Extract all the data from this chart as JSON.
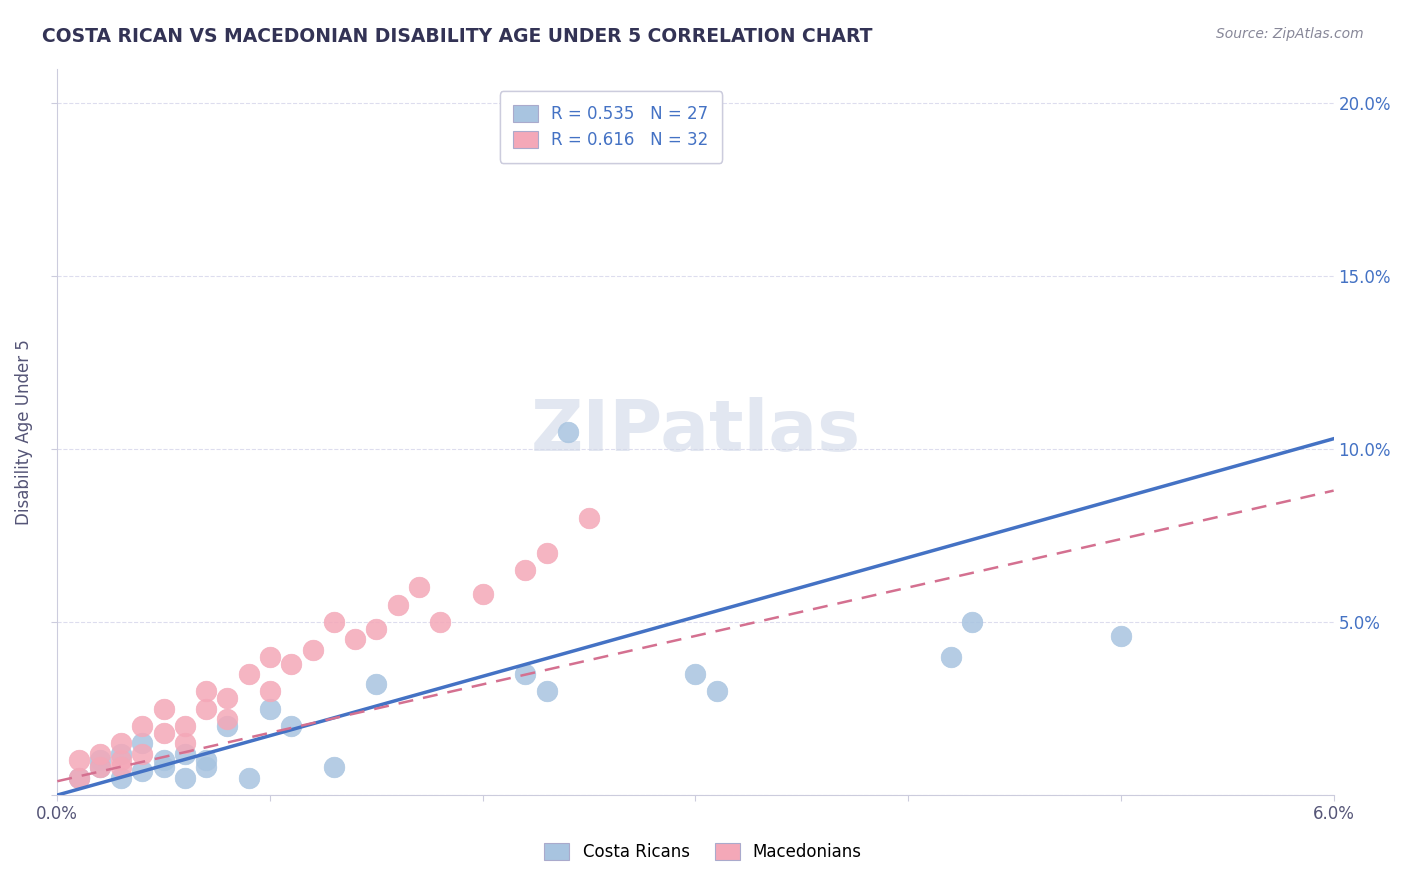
{
  "title": "COSTA RICAN VS MACEDONIAN DISABILITY AGE UNDER 5 CORRELATION CHART",
  "source": "Source: ZipAtlas.com",
  "ylabel": "Disability Age Under 5",
  "xlim": [
    0.0,
    0.06
  ],
  "ylim": [
    0.0,
    0.21
  ],
  "yticks_right": [
    0.0,
    0.05,
    0.1,
    0.15,
    0.2
  ],
  "ytick_labels_right": [
    "",
    "5.0%",
    "10.0%",
    "15.0%",
    "20.0%"
  ],
  "blue_R": "0.535",
  "blue_N": "27",
  "pink_R": "0.616",
  "pink_N": "32",
  "blue_color": "#a8c4e0",
  "pink_color": "#f4a8b8",
  "blue_line_color": "#4472c4",
  "pink_line_color": "#d47090",
  "legend_label_blue": "Costa Ricans",
  "legend_label_pink": "Macedonians",
  "watermark": "ZIPatlas",
  "blue_scatter_x": [
    0.001,
    0.002,
    0.002,
    0.003,
    0.003,
    0.004,
    0.004,
    0.005,
    0.005,
    0.006,
    0.006,
    0.007,
    0.007,
    0.008,
    0.009,
    0.01,
    0.011,
    0.013,
    0.015,
    0.022,
    0.023,
    0.024,
    0.03,
    0.031,
    0.042,
    0.043,
    0.05
  ],
  "blue_scatter_y": [
    0.005,
    0.008,
    0.01,
    0.012,
    0.005,
    0.015,
    0.007,
    0.01,
    0.008,
    0.012,
    0.005,
    0.008,
    0.01,
    0.02,
    0.005,
    0.025,
    0.02,
    0.008,
    0.032,
    0.035,
    0.03,
    0.105,
    0.035,
    0.03,
    0.04,
    0.05,
    0.046
  ],
  "pink_scatter_x": [
    0.001,
    0.001,
    0.002,
    0.002,
    0.003,
    0.003,
    0.003,
    0.004,
    0.004,
    0.005,
    0.005,
    0.006,
    0.006,
    0.007,
    0.007,
    0.008,
    0.008,
    0.009,
    0.01,
    0.01,
    0.011,
    0.012,
    0.013,
    0.014,
    0.015,
    0.016,
    0.017,
    0.018,
    0.02,
    0.022,
    0.023,
    0.025
  ],
  "pink_scatter_y": [
    0.005,
    0.01,
    0.008,
    0.012,
    0.01,
    0.015,
    0.008,
    0.02,
    0.012,
    0.018,
    0.025,
    0.015,
    0.02,
    0.025,
    0.03,
    0.022,
    0.028,
    0.035,
    0.04,
    0.03,
    0.038,
    0.042,
    0.05,
    0.045,
    0.048,
    0.055,
    0.06,
    0.05,
    0.058,
    0.065,
    0.07,
    0.08
  ],
  "blue_line_x": [
    0.0,
    0.06
  ],
  "blue_line_y": [
    0.0,
    0.103
  ],
  "pink_line_x": [
    0.0,
    0.06
  ],
  "pink_line_y": [
    0.004,
    0.088
  ],
  "background_color": "#ffffff",
  "grid_color": "#ddddee",
  "title_color": "#333355",
  "axis_label_color": "#4472c4",
  "watermark_color": "#d0d8e8"
}
